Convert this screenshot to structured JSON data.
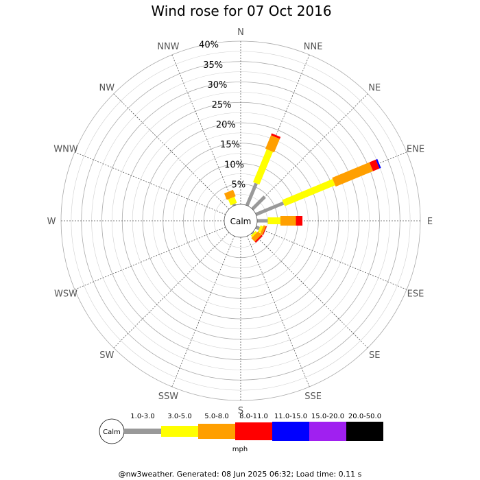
{
  "chart_data": {
    "type": "windrose",
    "title": "Wind rose for 07 Oct 2016",
    "directions": [
      "N",
      "NNE",
      "NE",
      "ENE",
      "E",
      "ESE",
      "SE",
      "SSE",
      "S",
      "SSW",
      "SW",
      "WSW",
      "W",
      "WNW",
      "NW",
      "NNW"
    ],
    "radial_ticks": [
      "5%",
      "10%",
      "15%",
      "20%",
      "25%",
      "30%",
      "35%",
      "40%"
    ],
    "r_max": 40,
    "calm_label": "Calm",
    "unit_label": "mph",
    "speed_bins": [
      {
        "label": "1.0-3.0",
        "color": "#999999"
      },
      {
        "label": "3.0-5.0",
        "color": "#ffff00"
      },
      {
        "label": "5.0-8.0",
        "color": "#ff9f00"
      },
      {
        "label": "8.0-11.0",
        "color": "#ff0000"
      },
      {
        "label": "11.0-15.0",
        "color": "#0000ff"
      },
      {
        "label": "15.0-20.0",
        "color": "#a020f0"
      },
      {
        "label": "20.0-50.0",
        "color": "#000000"
      }
    ],
    "series": [
      {
        "direction": "NNE",
        "values": [
          5.9,
          8.7,
          3.6,
          0.5,
          0,
          0,
          0
        ]
      },
      {
        "direction": "NE",
        "values": [
          4.3,
          0,
          0,
          0,
          0,
          0,
          0
        ]
      },
      {
        "direction": "ENE",
        "values": [
          7.3,
          13.4,
          9.9,
          1.7,
          0.4,
          0,
          0
        ]
      },
      {
        "direction": "E",
        "values": [
          2.6,
          3.1,
          3.8,
          1.6,
          0,
          0,
          0
        ]
      },
      {
        "direction": "ESE",
        "values": [
          0.9,
          0.7,
          0.6,
          0.2,
          0,
          0,
          0
        ]
      },
      {
        "direction": "SE",
        "values": [
          0.3,
          0.5,
          1.2,
          0.4,
          0,
          0,
          0
        ]
      },
      {
        "direction": "NNW",
        "values": [
          0.4,
          1.6,
          1.7,
          0,
          0,
          0,
          0
        ]
      }
    ]
  },
  "footer": "@nw3weather. Generated: 08 Jun 2025 06:32; Load time: 0.11 s"
}
